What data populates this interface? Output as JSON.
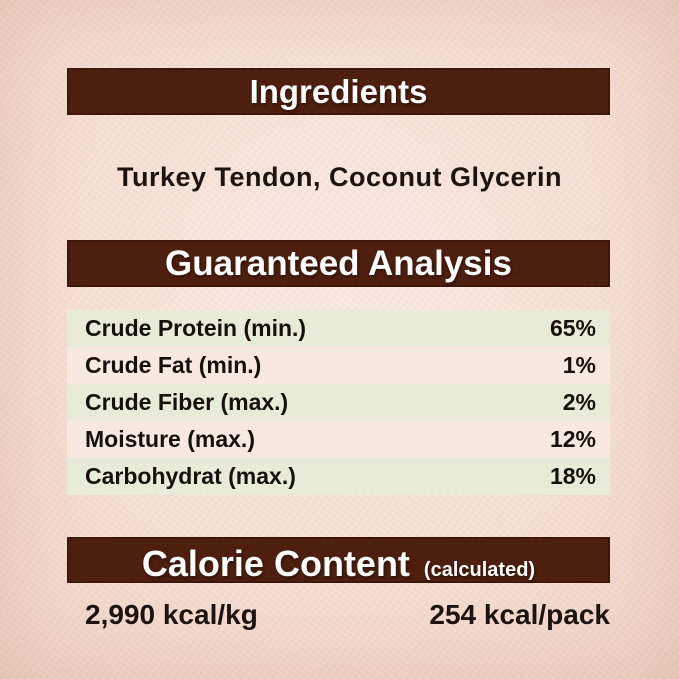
{
  "colors": {
    "header_bar": "#4e1f0e",
    "header_text": "#fdfdfd",
    "row_green": "#e8ebd7",
    "row_light": "#f8e9e0",
    "background_center": "#f9eae2",
    "background_edge": "#f0d4c6",
    "body_text": "#1b1410"
  },
  "ingredients": {
    "title": "Ingredients",
    "text": "Turkey Tendon, Coconut Glycerin"
  },
  "analysis": {
    "title": "Guaranteed Analysis",
    "rows": [
      {
        "label": "Crude Protein (min.)",
        "value": "65%"
      },
      {
        "label": "Crude Fat (min.)",
        "value": "1%"
      },
      {
        "label": "Crude Fiber (max.)",
        "value": "2%"
      },
      {
        "label": "Moisture (max.)",
        "value": "12%"
      },
      {
        "label": "Carbohydrat (max.)",
        "value": "18%"
      }
    ]
  },
  "calories": {
    "title": "Calorie Content",
    "subtitle": "(calculated)",
    "per_kg": "2,990 kcal/kg",
    "per_pack": "254 kcal/pack"
  }
}
